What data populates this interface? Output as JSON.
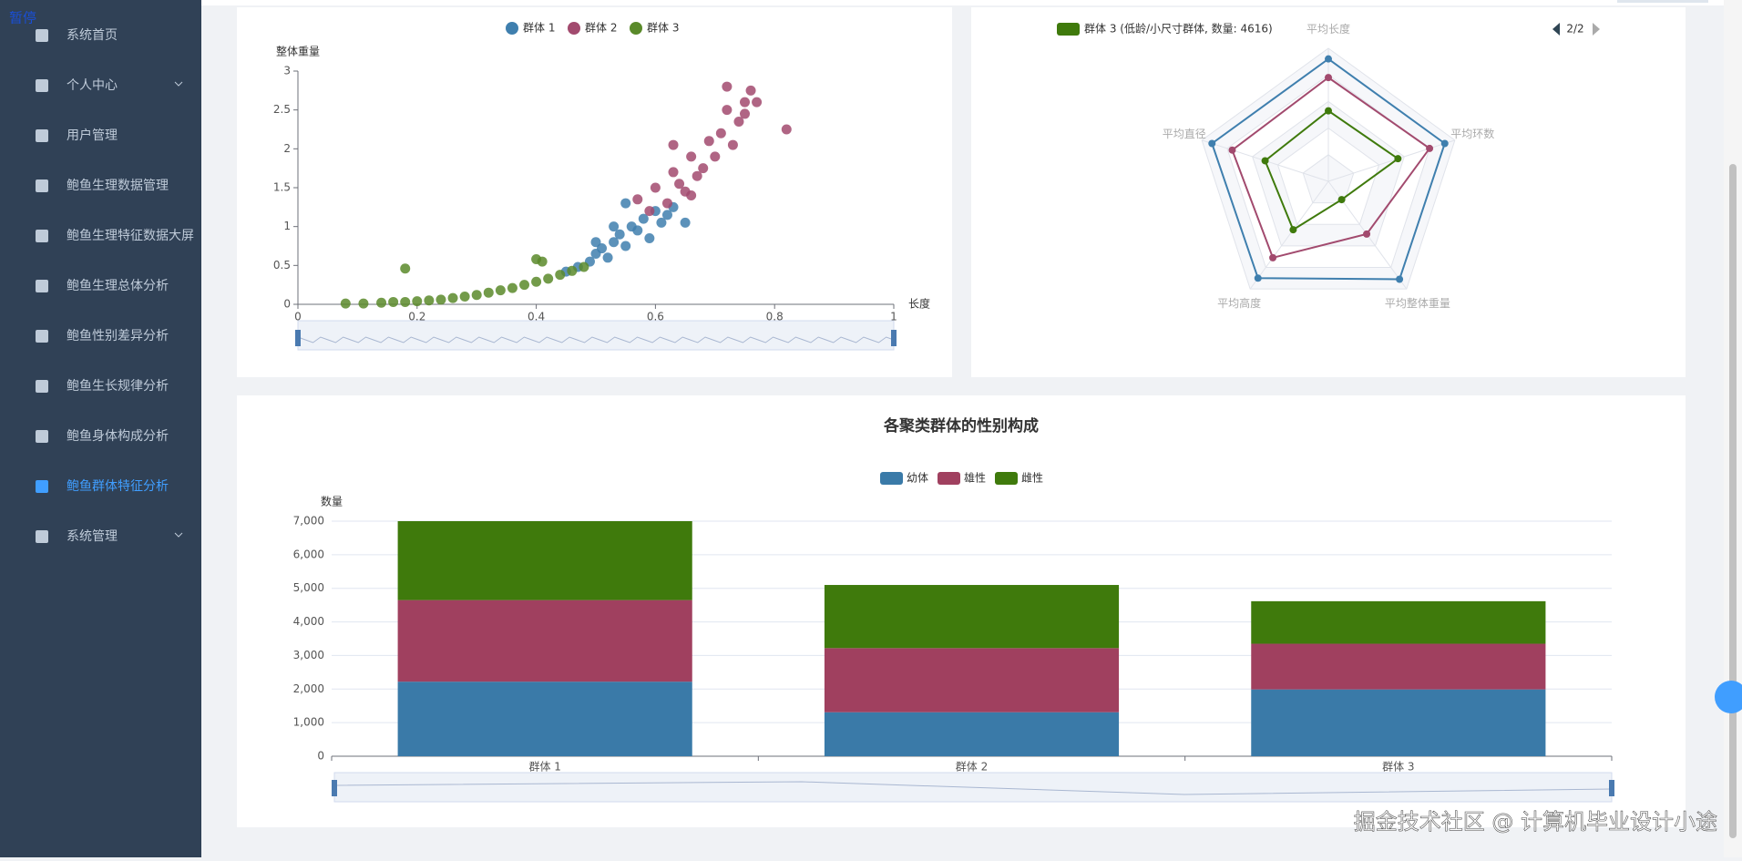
{
  "overlay": "暂停",
  "sidebar": {
    "items": [
      "系统首页",
      "个人中心",
      "用户管理",
      "鲍鱼生理数据管理",
      "鲍鱼生理特征数据大屏",
      "鲍鱼生理总体分析",
      "鲍鱼性别差异分析",
      "鲍鱼生长规律分析",
      "鲍鱼身体构成分析",
      "鲍鱼群体特征分析",
      "系统管理"
    ],
    "active": 9,
    "expandable": [
      1,
      10
    ]
  },
  "watermark": "掘金技术社区 @ 计算机毕业设计小途",
  "chart_data": [
    {
      "type": "scatter",
      "y_label": "整体重量",
      "x_label": "长度",
      "xlim": [
        0,
        1
      ],
      "ylim": [
        0,
        3
      ],
      "xticks": [
        0,
        0.2,
        0.4,
        0.6,
        0.8,
        1
      ],
      "yticks": [
        0,
        0.5,
        1,
        1.5,
        2,
        2.5,
        3
      ],
      "series": [
        {
          "name": "群体 1",
          "color": "#3f7fae",
          "x": [
            0.45,
            0.47,
            0.49,
            0.5,
            0.51,
            0.52,
            0.53,
            0.54,
            0.55,
            0.56,
            0.57,
            0.58,
            0.59,
            0.6,
            0.61,
            0.62,
            0.5,
            0.53,
            0.55,
            0.63,
            0.65
          ],
          "y": [
            0.42,
            0.48,
            0.55,
            0.65,
            0.72,
            0.6,
            0.8,
            0.9,
            0.75,
            1.0,
            0.95,
            1.1,
            0.85,
            1.2,
            1.05,
            1.15,
            0.8,
            1.0,
            1.3,
            1.25,
            1.05
          ]
        },
        {
          "name": "群体 2",
          "color": "#a24a6e",
          "x": [
            0.57,
            0.59,
            0.6,
            0.62,
            0.63,
            0.64,
            0.65,
            0.66,
            0.67,
            0.68,
            0.69,
            0.7,
            0.71,
            0.72,
            0.73,
            0.74,
            0.75,
            0.76,
            0.77,
            0.82,
            0.63,
            0.66,
            0.72,
            0.75
          ],
          "y": [
            1.35,
            1.2,
            1.5,
            1.3,
            1.7,
            1.55,
            1.45,
            1.9,
            1.65,
            1.75,
            2.1,
            1.9,
            2.2,
            2.5,
            2.05,
            2.35,
            2.6,
            2.75,
            2.6,
            2.25,
            2.05,
            1.4,
            2.8,
            2.45
          ]
        },
        {
          "name": "群体 3",
          "color": "#5a8a2a",
          "x": [
            0.08,
            0.11,
            0.14,
            0.16,
            0.18,
            0.2,
            0.22,
            0.24,
            0.26,
            0.28,
            0.3,
            0.32,
            0.34,
            0.36,
            0.38,
            0.4,
            0.42,
            0.44,
            0.46,
            0.48,
            0.18,
            0.4,
            0.41
          ],
          "y": [
            0.01,
            0.01,
            0.02,
            0.03,
            0.03,
            0.04,
            0.05,
            0.06,
            0.08,
            0.1,
            0.12,
            0.15,
            0.18,
            0.21,
            0.25,
            0.29,
            0.33,
            0.38,
            0.43,
            0.48,
            0.46,
            0.58,
            0.55
          ]
        }
      ]
    },
    {
      "type": "radar",
      "indicators": [
        "平均长度",
        "平均环数",
        "平均整体重量",
        "平均高度",
        "平均直径"
      ],
      "rlim": [
        0,
        1
      ],
      "legend_page": "2/2",
      "series": [
        {
          "color": "#3f7fae",
          "values": [
            0.92,
            0.92,
            0.91,
            0.9,
            0.92
          ]
        },
        {
          "color": "#a24a6e",
          "values": [
            0.78,
            0.8,
            0.49,
            0.71,
            0.76
          ]
        },
        {
          "name": "群体 3 (低龄/小尺寸群体, 数量: 4616)",
          "color": "#3f7a0c",
          "values": [
            0.53,
            0.55,
            0.17,
            0.45,
            0.5
          ]
        }
      ]
    },
    {
      "type": "stacked-bar",
      "title": "各聚类群体的性别构成",
      "y_label": "数量",
      "categories": [
        "群体 1",
        "群体 2",
        "群体 3"
      ],
      "ylim": [
        0,
        7000
      ],
      "yticks": [
        0,
        {
          "value": 1000,
          "label": "1,000"
        },
        {
          "value": 2000,
          "label": "2,000"
        },
        {
          "value": 3000,
          "label": "3,000"
        },
        {
          "value": 4000,
          "label": "4,000"
        },
        {
          "value": 5000,
          "label": "5,000"
        },
        {
          "value": 6000,
          "label": "6,000"
        },
        {
          "value": 7000,
          "label": "7,000"
        }
      ],
      "grid": true,
      "series": [
        {
          "name": "幼体",
          "color": "#3a7aa8",
          "values": [
            2220,
            1310,
            1990
          ]
        },
        {
          "name": "雄性",
          "color": "#a0405f",
          "values": [
            2430,
            1910,
            1360
          ]
        },
        {
          "name": "雌性",
          "color": "#3f7a0c",
          "values": [
            2350,
            1880,
            1266
          ]
        }
      ]
    }
  ]
}
